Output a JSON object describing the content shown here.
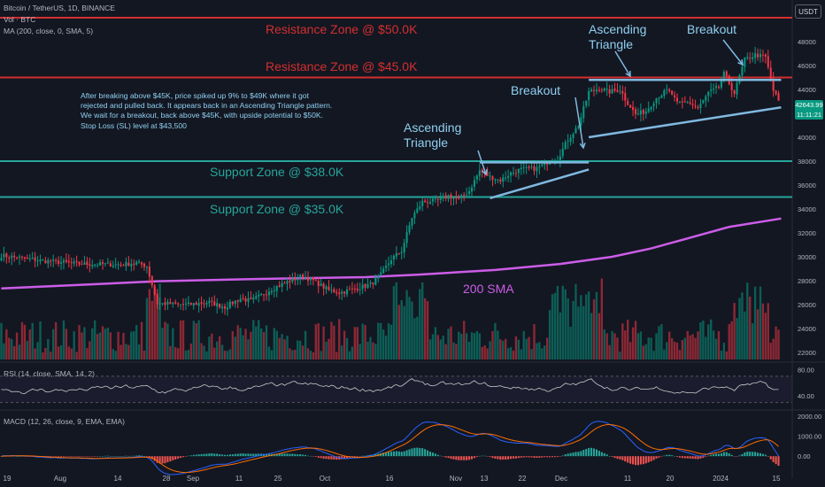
{
  "header": {
    "symbol_line": "Bitcoin / TetherUS, 1D, BINANCE",
    "volume_line": "Vol · BTC",
    "ma_line": "MA (200, close, 0, SMA, 5)",
    "currency_button": "USDT"
  },
  "note_text": "After breaking above $45K, price spiked up 9% to $49K where it got rejected and pulled back. It appears back in an Ascending Triangle pattern. We wait for a breakout, back above $45K, with upside potential to $50K. Stop Loss (SL) level at $43,500",
  "annotations": {
    "resistance_50k": "Resistance Zone @ $50.0K",
    "resistance_45k": "Resistance Zone @ $45.0K",
    "support_38k": "Support Zone @ $38.0K",
    "support_35k": "Support Zone @ $35.0K",
    "ascending_triangle_1": [
      "Ascending",
      "Triangle"
    ],
    "ascending_triangle_2": [
      "Ascending",
      "Triangle"
    ],
    "breakout_1": "Breakout",
    "breakout_2": "Breakout",
    "sma_label": "200 SMA"
  },
  "last_price": {
    "value": "42643.99",
    "countdown": "11:11:21"
  },
  "rsi_legend": "RSI (14, close, SMA, 14, 2)",
  "macd_legend": "MACD (12, 26, close, 9, EMA, EMA)",
  "colors": {
    "background": "#131722",
    "up": "#089981",
    "down": "#f23645",
    "resistance": "#d32f2f",
    "support": "#26a69a",
    "sma": "#cc5de8",
    "trendline": "#7fb9e0",
    "annotation_text_blue": "#8fd0f0",
    "macd_line": "#2962ff",
    "signal_line": "#ff6d00"
  },
  "chart_data": [
    {
      "type": "candlestick",
      "title": "Bitcoin / TetherUS, 1D, BINANCE",
      "y_axis_ticks": [
        22000,
        24000,
        26000,
        28000,
        30000,
        32000,
        34000,
        36000,
        38000,
        40000,
        42000,
        44000,
        46000,
        48000
      ],
      "ylim": [
        20000,
        50500
      ],
      "x_axis_ticks": [
        "19",
        "Aug",
        "14",
        "28",
        "Sep",
        "11",
        "25",
        "Oct",
        "16",
        "Nov",
        "13",
        "22",
        "Dec",
        "11",
        "20",
        "2024",
        "15"
      ],
      "horizontal_levels": [
        {
          "label": "Resistance Zone @ $50.0K",
          "price": 50000
        },
        {
          "label": "Resistance Zone @ $45.0K",
          "price": 45000
        },
        {
          "label": "Support Zone @ $38.0K",
          "price": 38000
        },
        {
          "label": "Support Zone @ $35.0K",
          "price": 35000
        }
      ],
      "close_path": [
        [
          0,
          30100
        ],
        [
          15,
          29700
        ],
        [
          30,
          29400
        ],
        [
          46,
          29350
        ],
        [
          52,
          29500
        ],
        [
          56,
          29200
        ],
        [
          60,
          26100
        ],
        [
          66,
          26050
        ],
        [
          72,
          26000
        ],
        [
          80,
          26200
        ],
        [
          86,
          25800
        ],
        [
          92,
          26500
        ],
        [
          96,
          26300
        ],
        [
          104,
          27300
        ],
        [
          110,
          27900
        ],
        [
          116,
          28400
        ],
        [
          120,
          28000
        ],
        [
          126,
          27200
        ],
        [
          130,
          27000
        ],
        [
          136,
          27300
        ],
        [
          142,
          27700
        ],
        [
          146,
          28500
        ],
        [
          150,
          29800
        ],
        [
          154,
          30500
        ],
        [
          158,
          33300
        ],
        [
          162,
          34600
        ],
        [
          168,
          34700
        ],
        [
          172,
          35100
        ],
        [
          176,
          34800
        ],
        [
          180,
          35500
        ],
        [
          184,
          37200
        ],
        [
          188,
          36700
        ],
        [
          192,
          36400
        ],
        [
          196,
          37000
        ],
        [
          200,
          37300
        ],
        [
          206,
          37400
        ],
        [
          210,
          37900
        ],
        [
          214,
          38200
        ],
        [
          218,
          39800
        ],
        [
          222,
          41000
        ],
        [
          226,
          43800
        ],
        [
          230,
          44100
        ],
        [
          234,
          43800
        ],
        [
          238,
          44000
        ],
        [
          240,
          43200
        ],
        [
          244,
          41900
        ],
        [
          248,
          42200
        ],
        [
          252,
          43300
        ],
        [
          256,
          43900
        ],
        [
          258,
          43600
        ],
        [
          260,
          42800
        ],
        [
          264,
          43000
        ],
        [
          268,
          42400
        ],
        [
          272,
          43700
        ],
        [
          276,
          44200
        ],
        [
          278,
          45300
        ],
        [
          282,
          43700
        ],
        [
          286,
          46500
        ],
        [
          290,
          46900
        ],
        [
          294,
          46700
        ],
        [
          297,
          43900
        ],
        [
          300,
          42600
        ]
      ],
      "sma_200_path": [
        [
          0,
          27350
        ],
        [
          30,
          27650
        ],
        [
          60,
          27950
        ],
        [
          100,
          28150
        ],
        [
          140,
          28300
        ],
        [
          160,
          28500
        ],
        [
          190,
          28900
        ],
        [
          215,
          29400
        ],
        [
          235,
          30000
        ],
        [
          250,
          30700
        ],
        [
          265,
          31600
        ],
        [
          280,
          32500
        ],
        [
          300,
          33200
        ]
      ],
      "ascending_triangle_1": {
        "resistance": 37900,
        "support_start": 34900,
        "support_end": 37300
      },
      "ascending_triangle_2": {
        "resistance": 44800,
        "support_start": 40000,
        "support_end": 42500
      }
    },
    {
      "type": "line",
      "title": "RSI (14, close, SMA, 14, 2)",
      "y_axis_ticks": [
        40.0,
        80.0
      ],
      "upper_band": 70,
      "lower_band": 30
    },
    {
      "type": "line",
      "title": "MACD (12, 26, close, 9, EMA, EMA)",
      "y_axis_ticks": [
        0.0,
        1000.0,
        2000.0
      ]
    }
  ]
}
